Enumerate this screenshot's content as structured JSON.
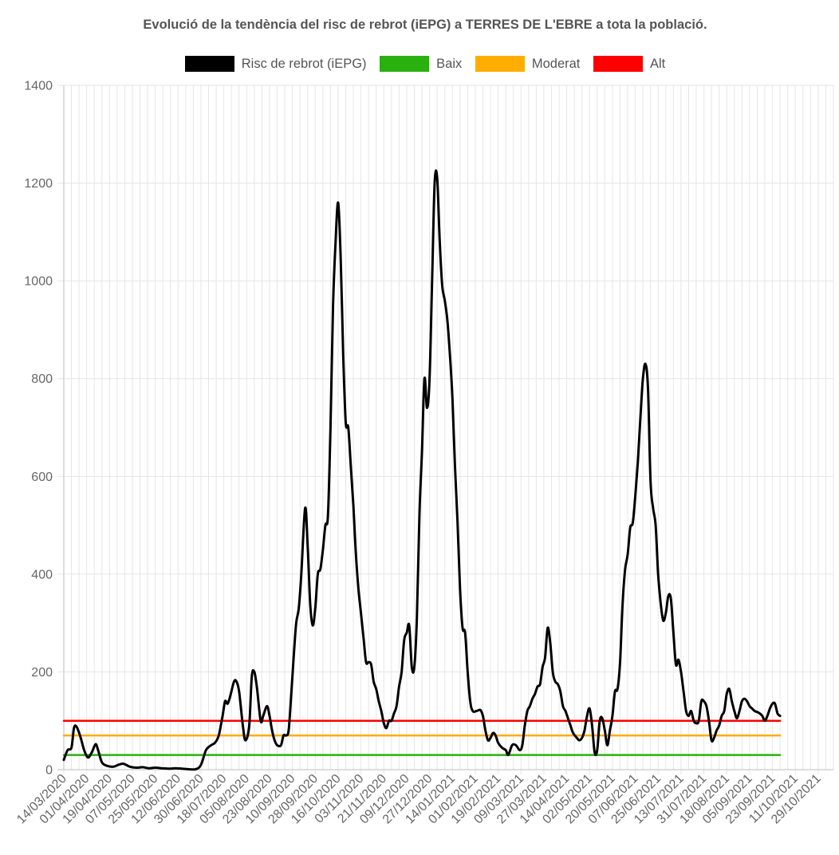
{
  "chart_data": {
    "type": "line",
    "title": "Evolució de la tendència del risc de rebrot (iEPG) a TERRES DE L'EBRE a tota la població.",
    "ylim": [
      0,
      1400
    ],
    "yticks": [
      0,
      200,
      400,
      600,
      800,
      1000,
      1200,
      1400
    ],
    "x_range": [
      "2020-03-14",
      "2021-11-10"
    ],
    "x_tick_labels": [
      "14/03/2020",
      "01/04/2020",
      "19/04/2020",
      "07/05/2020",
      "25/05/2020",
      "12/06/2020",
      "30/06/2020",
      "18/07/2020",
      "05/08/2020",
      "23/08/2020",
      "10/09/2020",
      "28/09/2020",
      "16/10/2020",
      "03/11/2020",
      "21/11/2020",
      "09/12/2020",
      "27/12/2020",
      "14/01/2021",
      "01/02/2021",
      "19/02/2021",
      "09/03/2021",
      "27/03/2021",
      "14/04/2021",
      "02/05/2021",
      "20/05/2021",
      "07/06/2021",
      "25/06/2021",
      "13/07/2021",
      "31/07/2021",
      "18/08/2021",
      "05/09/2021",
      "23/09/2021",
      "11/10/2021",
      "29/10/2021"
    ],
    "grid": true,
    "legend_position": "top",
    "series": [
      {
        "name": "Risc de rebrot (iEPG)",
        "color": "#000000",
        "points": [
          [
            "2020-03-14",
            20
          ],
          [
            "2020-03-17",
            40
          ],
          [
            "2020-03-20",
            45
          ],
          [
            "2020-03-22",
            85
          ],
          [
            "2020-03-24",
            88
          ],
          [
            "2020-03-27",
            68
          ],
          [
            "2020-03-30",
            40
          ],
          [
            "2020-04-02",
            25
          ],
          [
            "2020-04-05",
            35
          ],
          [
            "2020-04-08",
            52
          ],
          [
            "2020-04-10",
            40
          ],
          [
            "2020-04-13",
            15
          ],
          [
            "2020-04-17",
            8
          ],
          [
            "2020-04-22",
            6
          ],
          [
            "2020-04-26",
            10
          ],
          [
            "2020-04-30",
            12
          ],
          [
            "2020-05-05",
            6
          ],
          [
            "2020-05-10",
            4
          ],
          [
            "2020-05-15",
            5
          ],
          [
            "2020-05-20",
            3
          ],
          [
            "2020-05-25",
            4
          ],
          [
            "2020-05-30",
            3
          ],
          [
            "2020-06-05",
            2
          ],
          [
            "2020-06-10",
            3
          ],
          [
            "2020-06-15",
            2
          ],
          [
            "2020-06-20",
            1
          ],
          [
            "2020-06-26",
            1
          ],
          [
            "2020-06-30",
            10
          ],
          [
            "2020-07-04",
            40
          ],
          [
            "2020-07-08",
            50
          ],
          [
            "2020-07-11",
            55
          ],
          [
            "2020-07-14",
            70
          ],
          [
            "2020-07-17",
            110
          ],
          [
            "2020-07-19",
            140
          ],
          [
            "2020-07-21",
            135
          ],
          [
            "2020-07-23",
            150
          ],
          [
            "2020-07-26",
            180
          ],
          [
            "2020-07-28",
            180
          ],
          [
            "2020-07-30",
            160
          ],
          [
            "2020-08-02",
            90
          ],
          [
            "2020-08-04",
            60
          ],
          [
            "2020-08-07",
            90
          ],
          [
            "2020-08-09",
            190
          ],
          [
            "2020-08-11",
            200
          ],
          [
            "2020-08-13",
            170
          ],
          [
            "2020-08-16",
            100
          ],
          [
            "2020-08-18",
            110
          ],
          [
            "2020-08-21",
            130
          ],
          [
            "2020-08-23",
            110
          ],
          [
            "2020-08-25",
            80
          ],
          [
            "2020-08-27",
            60
          ],
          [
            "2020-08-29",
            50
          ],
          [
            "2020-09-01",
            50
          ],
          [
            "2020-09-03",
            70
          ],
          [
            "2020-09-05",
            70
          ],
          [
            "2020-09-07",
            80
          ],
          [
            "2020-09-09",
            150
          ],
          [
            "2020-09-11",
            230
          ],
          [
            "2020-09-13",
            300
          ],
          [
            "2020-09-15",
            330
          ],
          [
            "2020-09-17",
            400
          ],
          [
            "2020-09-20",
            535
          ],
          [
            "2020-09-22",
            460
          ],
          [
            "2020-09-24",
            340
          ],
          [
            "2020-09-26",
            295
          ],
          [
            "2020-09-28",
            330
          ],
          [
            "2020-09-30",
            400
          ],
          [
            "2020-10-02",
            410
          ],
          [
            "2020-10-04",
            450
          ],
          [
            "2020-10-06",
            500
          ],
          [
            "2020-10-08",
            520
          ],
          [
            "2020-10-10",
            700
          ],
          [
            "2020-10-12",
            950
          ],
          [
            "2020-10-14",
            1080
          ],
          [
            "2020-10-16",
            1160
          ],
          [
            "2020-10-18",
            1050
          ],
          [
            "2020-10-20",
            850
          ],
          [
            "2020-10-22",
            710
          ],
          [
            "2020-10-24",
            700
          ],
          [
            "2020-10-26",
            620
          ],
          [
            "2020-10-28",
            540
          ],
          [
            "2020-10-30",
            440
          ],
          [
            "2020-11-01",
            370
          ],
          [
            "2020-11-03",
            320
          ],
          [
            "2020-11-05",
            270
          ],
          [
            "2020-11-07",
            220
          ],
          [
            "2020-11-09",
            220
          ],
          [
            "2020-11-11",
            215
          ],
          [
            "2020-11-13",
            180
          ],
          [
            "2020-11-15",
            165
          ],
          [
            "2020-11-17",
            140
          ],
          [
            "2020-11-19",
            120
          ],
          [
            "2020-11-21",
            95
          ],
          [
            "2020-11-23",
            85
          ],
          [
            "2020-11-25",
            100
          ],
          [
            "2020-11-27",
            100
          ],
          [
            "2020-11-29",
            115
          ],
          [
            "2020-12-01",
            130
          ],
          [
            "2020-12-03",
            170
          ],
          [
            "2020-12-05",
            200
          ],
          [
            "2020-12-07",
            265
          ],
          [
            "2020-12-09",
            280
          ],
          [
            "2020-12-11",
            295
          ],
          [
            "2020-12-13",
            210
          ],
          [
            "2020-12-15",
            210
          ],
          [
            "2020-12-17",
            310
          ],
          [
            "2020-12-19",
            520
          ],
          [
            "2020-12-21",
            650
          ],
          [
            "2020-12-23",
            800
          ],
          [
            "2020-12-25",
            740
          ],
          [
            "2020-12-27",
            800
          ],
          [
            "2020-12-29",
            1000
          ],
          [
            "2020-12-31",
            1200
          ],
          [
            "2021-01-02",
            1210
          ],
          [
            "2021-01-04",
            1080
          ],
          [
            "2021-01-06",
            990
          ],
          [
            "2021-01-08",
            960
          ],
          [
            "2021-01-10",
            920
          ],
          [
            "2021-01-12",
            850
          ],
          [
            "2021-01-14",
            760
          ],
          [
            "2021-01-16",
            620
          ],
          [
            "2021-01-18",
            510
          ],
          [
            "2021-01-20",
            370
          ],
          [
            "2021-01-22",
            290
          ],
          [
            "2021-01-24",
            280
          ],
          [
            "2021-01-26",
            200
          ],
          [
            "2021-01-28",
            140
          ],
          [
            "2021-01-30",
            120
          ],
          [
            "2021-02-02",
            120
          ],
          [
            "2021-02-05",
            122
          ],
          [
            "2021-02-07",
            110
          ],
          [
            "2021-02-09",
            80
          ],
          [
            "2021-02-11",
            60
          ],
          [
            "2021-02-13",
            65
          ],
          [
            "2021-02-15",
            75
          ],
          [
            "2021-02-17",
            70
          ],
          [
            "2021-02-19",
            55
          ],
          [
            "2021-02-22",
            45
          ],
          [
            "2021-02-25",
            40
          ],
          [
            "2021-02-27",
            30
          ],
          [
            "2021-03-02",
            50
          ],
          [
            "2021-03-05",
            50
          ],
          [
            "2021-03-08",
            40
          ],
          [
            "2021-03-10",
            50
          ],
          [
            "2021-03-12",
            90
          ],
          [
            "2021-03-14",
            120
          ],
          [
            "2021-03-16",
            130
          ],
          [
            "2021-03-18",
            145
          ],
          [
            "2021-03-20",
            155
          ],
          [
            "2021-03-22",
            170
          ],
          [
            "2021-03-24",
            175
          ],
          [
            "2021-03-26",
            210
          ],
          [
            "2021-03-28",
            230
          ],
          [
            "2021-03-30",
            290
          ],
          [
            "2021-04-01",
            260
          ],
          [
            "2021-04-03",
            200
          ],
          [
            "2021-04-05",
            180
          ],
          [
            "2021-04-07",
            175
          ],
          [
            "2021-04-09",
            160
          ],
          [
            "2021-04-11",
            130
          ],
          [
            "2021-04-13",
            120
          ],
          [
            "2021-04-15",
            105
          ],
          [
            "2021-04-17",
            90
          ],
          [
            "2021-04-19",
            75
          ],
          [
            "2021-04-22",
            65
          ],
          [
            "2021-04-24",
            60
          ],
          [
            "2021-04-26",
            65
          ],
          [
            "2021-04-28",
            80
          ],
          [
            "2021-04-30",
            110
          ],
          [
            "2021-05-02",
            125
          ],
          [
            "2021-05-04",
            90
          ],
          [
            "2021-05-06",
            35
          ],
          [
            "2021-05-08",
            40
          ],
          [
            "2021-05-10",
            100
          ],
          [
            "2021-05-12",
            105
          ],
          [
            "2021-05-14",
            80
          ],
          [
            "2021-05-16",
            50
          ],
          [
            "2021-05-18",
            80
          ],
          [
            "2021-05-20",
            110
          ],
          [
            "2021-05-22",
            160
          ],
          [
            "2021-05-24",
            165
          ],
          [
            "2021-05-26",
            220
          ],
          [
            "2021-05-28",
            340
          ],
          [
            "2021-05-30",
            410
          ],
          [
            "2021-06-01",
            440
          ],
          [
            "2021-06-03",
            495
          ],
          [
            "2021-06-05",
            505
          ],
          [
            "2021-06-07",
            560
          ],
          [
            "2021-06-09",
            630
          ],
          [
            "2021-06-11",
            720
          ],
          [
            "2021-06-13",
            800
          ],
          [
            "2021-06-15",
            830
          ],
          [
            "2021-06-17",
            780
          ],
          [
            "2021-06-19",
            590
          ],
          [
            "2021-06-21",
            535
          ],
          [
            "2021-06-23",
            500
          ],
          [
            "2021-06-25",
            400
          ],
          [
            "2021-06-27",
            340
          ],
          [
            "2021-06-29",
            305
          ],
          [
            "2021-07-01",
            320
          ],
          [
            "2021-07-03",
            355
          ],
          [
            "2021-07-05",
            350
          ],
          [
            "2021-07-07",
            280
          ],
          [
            "2021-07-09",
            215
          ],
          [
            "2021-07-11",
            225
          ],
          [
            "2021-07-13",
            200
          ],
          [
            "2021-07-15",
            160
          ],
          [
            "2021-07-17",
            120
          ],
          [
            "2021-07-19",
            110
          ],
          [
            "2021-07-21",
            120
          ],
          [
            "2021-07-23",
            100
          ],
          [
            "2021-07-25",
            95
          ],
          [
            "2021-07-27",
            100
          ],
          [
            "2021-07-29",
            140
          ],
          [
            "2021-07-31",
            140
          ],
          [
            "2021-08-02",
            130
          ],
          [
            "2021-08-04",
            100
          ],
          [
            "2021-08-06",
            60
          ],
          [
            "2021-08-08",
            65
          ],
          [
            "2021-08-10",
            80
          ],
          [
            "2021-08-12",
            90
          ],
          [
            "2021-08-14",
            110
          ],
          [
            "2021-08-16",
            120
          ],
          [
            "2021-08-18",
            155
          ],
          [
            "2021-08-20",
            165
          ],
          [
            "2021-08-22",
            140
          ],
          [
            "2021-08-24",
            120
          ],
          [
            "2021-08-26",
            105
          ],
          [
            "2021-08-28",
            120
          ],
          [
            "2021-08-30",
            140
          ],
          [
            "2021-09-01",
            145
          ],
          [
            "2021-09-03",
            140
          ],
          [
            "2021-09-05",
            130
          ],
          [
            "2021-09-07",
            125
          ],
          [
            "2021-09-09",
            120
          ],
          [
            "2021-09-11",
            118
          ],
          [
            "2021-09-13",
            115
          ],
          [
            "2021-09-15",
            110
          ],
          [
            "2021-09-17",
            100
          ],
          [
            "2021-09-19",
            110
          ],
          [
            "2021-09-21",
            125
          ],
          [
            "2021-09-23",
            135
          ],
          [
            "2021-09-25",
            135
          ],
          [
            "2021-09-27",
            115
          ],
          [
            "2021-09-29",
            110
          ]
        ]
      },
      {
        "name": "Baix",
        "color": "#2ab00f",
        "points": [
          [
            "2020-03-14",
            30
          ],
          [
            "2021-09-29",
            30
          ]
        ]
      },
      {
        "name": "Moderat",
        "color": "#ffae00",
        "points": [
          [
            "2020-03-14",
            70
          ],
          [
            "2021-09-29",
            70
          ]
        ]
      },
      {
        "name": "Alt",
        "color": "#ff0000",
        "points": [
          [
            "2020-03-14",
            100
          ],
          [
            "2021-09-29",
            100
          ]
        ]
      }
    ]
  }
}
